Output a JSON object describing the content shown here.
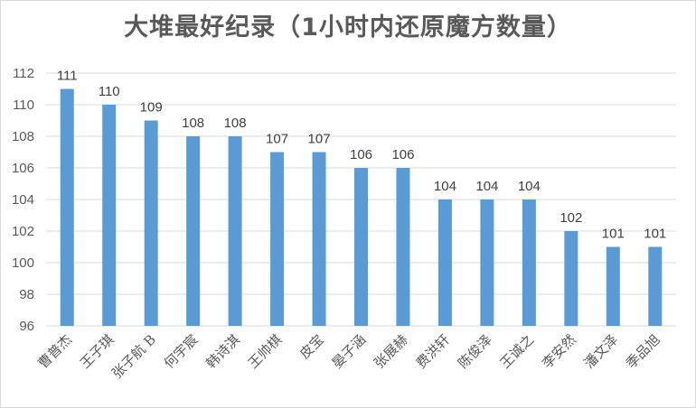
{
  "chart_data": {
    "type": "bar",
    "title": "大堆最好纪录（1小时内还原魔方数量）",
    "categories": [
      "曹普杰",
      "王子琪",
      "张子航 B",
      "何宇宸",
      "韩诗淇",
      "王帅棋",
      "皮宝",
      "晏子涵",
      "张展赫",
      "费洪轩",
      "陈俊泽",
      "王诚之",
      "李安然",
      "潘文泽",
      "季品旭"
    ],
    "values": [
      111,
      110,
      109,
      108,
      108,
      107,
      107,
      106,
      106,
      104,
      104,
      104,
      102,
      101,
      101
    ],
    "yticks": [
      96,
      98,
      100,
      102,
      104,
      106,
      108,
      110,
      112
    ],
    "ylim": [
      96,
      112
    ],
    "xlabel": "",
    "ylabel": "",
    "grid": true,
    "bar_color": "#5b9bd5",
    "grid_color": "#d9d9d9"
  }
}
